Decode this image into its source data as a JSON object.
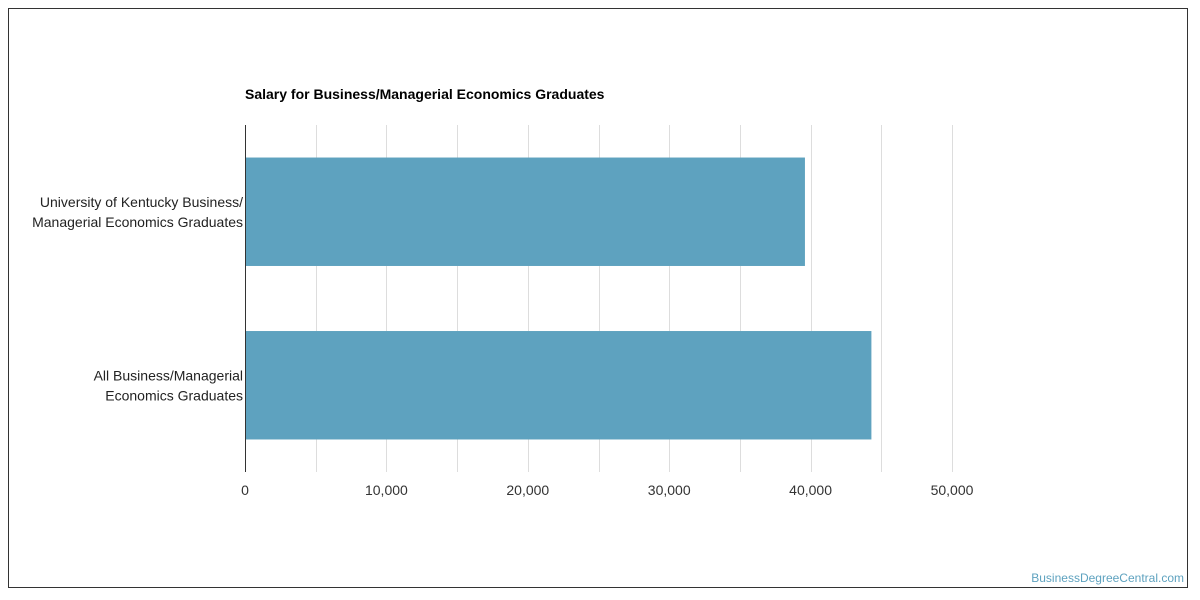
{
  "chart_data": {
    "type": "bar",
    "orientation": "horizontal",
    "title": "Salary for Business/Managerial Economics Graduates",
    "categories": [
      [
        "University of Kentucky Business/",
        "Managerial Economics Graduates"
      ],
      [
        "All Business/Managerial",
        "Economics Graduates"
      ]
    ],
    "values": [
      39600,
      44300
    ],
    "xlim": [
      0,
      50000
    ],
    "x_ticks": [
      "0",
      "10,000",
      "20,000",
      "30,000",
      "40,000",
      "50,000"
    ],
    "grid": true,
    "bar_color": "#5ea2bf"
  },
  "watermark": "BusinessDegreeCentral.com",
  "colors": {
    "grid": "#dddddd",
    "axis": "#333333",
    "watermark": "#5ea2bf"
  }
}
